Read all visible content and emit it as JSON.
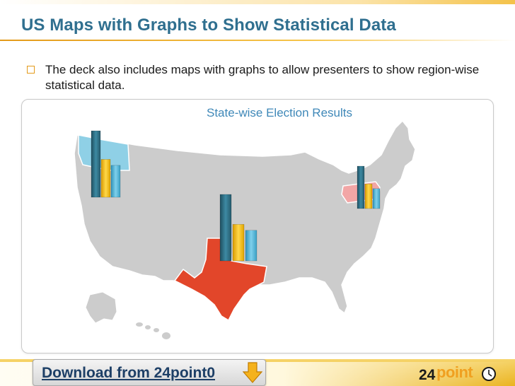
{
  "slide": {
    "title": "US Maps with Graphs to Show Statistical Data",
    "bullet": "The deck also includes maps with graphs to allow presenters to show region-wise statistical data."
  },
  "map": {
    "title": "State-wise Election Results",
    "highlighted_states": [
      {
        "name": "Washington",
        "color": "#8fd0e6"
      },
      {
        "name": "Texas",
        "color": "#e2462a"
      },
      {
        "name": "Pennsylvania",
        "color": "#f2a6a6"
      }
    ],
    "base_color": "#cfcfcf",
    "bar_colors": [
      "#2e6b80",
      "#f7c31a",
      "#4fb3d6"
    ]
  },
  "chart_data": {
    "type": "bar",
    "title": "State-wise Election Results",
    "series_colors": [
      "#2e6b80",
      "#f7c31a",
      "#4fb3d6"
    ],
    "groups": [
      {
        "region": "Washington",
        "values": [
          100,
          57,
          48
        ]
      },
      {
        "region": "Texas",
        "values": [
          100,
          55,
          46
        ]
      },
      {
        "region": "Pennsylvania",
        "values": [
          100,
          58,
          47
        ]
      }
    ]
  },
  "footer": {
    "download_label": "Download from 24point0",
    "logo_number": "24",
    "logo_word": "point",
    "logo_suffix": "0"
  }
}
